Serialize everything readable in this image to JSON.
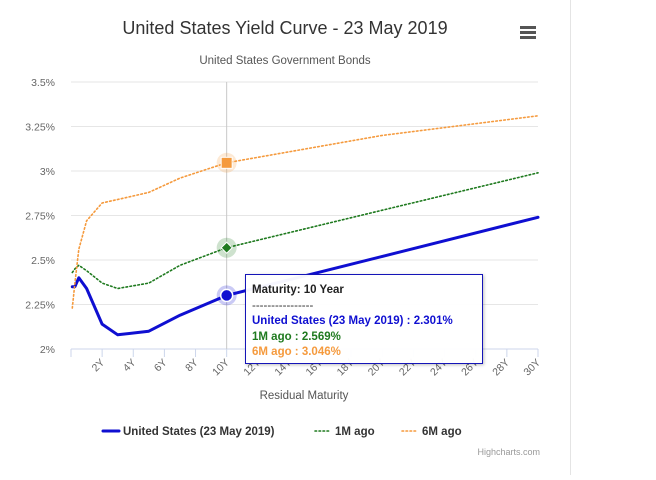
{
  "chart_data": {
    "type": "line",
    "title": "United States Yield Curve - 23 May 2019",
    "subtitle": "United States Government Bonds",
    "xlabel": "Residual Maturity",
    "ylabel": "",
    "ylim": [
      2.0,
      3.5
    ],
    "xlim": [
      0,
      30
    ],
    "yticks": [
      2.0,
      2.25,
      2.5,
      2.75,
      3.0,
      3.25,
      3.5
    ],
    "ytick_labels": [
      "2%",
      "2.25%",
      "2.5%",
      "2.75%",
      "3%",
      "3.25%",
      "3.5%"
    ],
    "xticks": [
      2,
      4,
      6,
      8,
      10,
      12,
      14,
      16,
      18,
      20,
      22,
      24,
      26,
      28,
      30
    ],
    "xtick_labels": [
      "2Y",
      "4Y",
      "6Y",
      "8Y",
      "10Y",
      "12Y",
      "14Y",
      "16Y",
      "18Y",
      "20Y",
      "22Y",
      "24Y",
      "26Y",
      "28Y",
      "30Y"
    ],
    "grid": "horizontal",
    "legend_position": "bottom",
    "crosshair_x": 10,
    "series": [
      {
        "name": "United States (23 May 2019)",
        "color": "#0f0fd1",
        "dash": "solid",
        "x": [
          0.083,
          0.25,
          0.5,
          1,
          2,
          3,
          5,
          7,
          10,
          20,
          30
        ],
        "values": [
          2.35,
          2.35,
          2.4,
          2.34,
          2.14,
          2.08,
          2.1,
          2.19,
          2.301,
          2.52,
          2.74
        ]
      },
      {
        "name": "1M ago",
        "color": "#1f7a1f",
        "dash": "dotted",
        "x": [
          0.083,
          0.25,
          0.5,
          1,
          2,
          3,
          5,
          7,
          10,
          20,
          30
        ],
        "values": [
          2.43,
          2.45,
          2.47,
          2.44,
          2.37,
          2.34,
          2.37,
          2.47,
          2.569,
          2.78,
          2.99
        ]
      },
      {
        "name": "6M ago",
        "color": "#f59a3d",
        "dash": "dotted",
        "x": [
          0.083,
          0.25,
          0.5,
          1,
          2,
          3,
          5,
          7,
          10,
          20,
          30
        ],
        "values": [
          2.23,
          2.37,
          2.56,
          2.72,
          2.82,
          2.84,
          2.88,
          2.96,
          3.046,
          3.2,
          3.31
        ]
      }
    ],
    "tooltip": {
      "title": "Maturity: 10 Year",
      "separator": "----------------",
      "rows": [
        {
          "label": "United States (23 May 2019) : 2.301%",
          "color": "#0f0fd1"
        },
        {
          "label": "1M ago : 2.569%",
          "color": "#1f7a1f"
        },
        {
          "label": "6M ago : 3.046%",
          "color": "#f59a3d"
        }
      ]
    },
    "credits": "Highcharts.com"
  },
  "colors": {
    "border": "#1515b8",
    "grid": "#e6e6e6",
    "axis_text": "#666666"
  },
  "menu_icon": "hamburger-menu-icon"
}
